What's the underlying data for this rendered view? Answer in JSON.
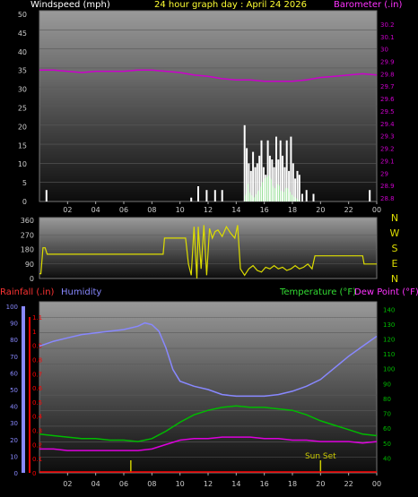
{
  "header": {
    "windspeed_label": "Windspeed (mph)",
    "title": "24 hour graph day : April 24 2026",
    "barometer_label": "Barometer (.in)"
  },
  "footer_labels": {
    "rainfall_label": "Rainfall (.in)",
    "humidity_label": "Humidity",
    "temperature_label": "Temperature (°F)",
    "dewpoint_label": "Dew Point (°F)",
    "sunset_label": "Sun Set"
  },
  "colors": {
    "wind": "#ffffff",
    "gust_fill": "#00cc00",
    "barometer": "#cc00cc",
    "direction": "#dddd00",
    "humidity": "#8888ff",
    "temperature": "#00bb00",
    "dewpoint": "#dd00dd",
    "rain": "#ff0000",
    "markers": "#cccc00",
    "axis_text": "#cccccc"
  },
  "chart_data": [
    {
      "type": "bar",
      "title": "24 hour graph day : April 24 2026",
      "ylabel": "Windspeed (mph)",
      "y2label": "Barometer (.in)",
      "xlim": [
        0,
        24
      ],
      "ylim": [
        0,
        50
      ],
      "y2lim": [
        28.8,
        30.25
      ],
      "x_tick_labels": [
        "02",
        "04",
        "06",
        "08",
        "10",
        "12",
        "14",
        "16",
        "18",
        "20",
        "22",
        "00"
      ],
      "y_tick_labels": [
        "50",
        "45",
        "40",
        "35",
        "30",
        "25",
        "20",
        "15",
        "10",
        "5",
        "0"
      ],
      "y2_tick_labels": [
        "30.2",
        "30.1",
        "30",
        "29.9",
        "29.8",
        "29.7",
        "29.6",
        "29.5",
        "29.4",
        "29.3",
        "29.2",
        "29.1",
        "29",
        "28.9",
        "28.8"
      ],
      "series": [
        {
          "name": "Windspeed (mph)",
          "type": "bar",
          "x": [
            0.5,
            10.8,
            11.3,
            11.9,
            12.5,
            13.0,
            14.6,
            14.75,
            14.9,
            15.05,
            15.2,
            15.35,
            15.5,
            15.65,
            15.8,
            15.95,
            16.1,
            16.25,
            16.4,
            16.55,
            16.7,
            16.85,
            17.0,
            17.15,
            17.3,
            17.45,
            17.6,
            17.75,
            17.9,
            18.05,
            18.2,
            18.35,
            18.5,
            18.7,
            19.0,
            19.5,
            23.5
          ],
          "values": [
            3,
            1,
            4,
            3,
            3,
            3,
            20,
            14,
            10,
            8,
            13,
            9,
            10,
            12,
            16,
            9,
            7,
            16,
            12,
            11,
            9,
            17,
            11,
            16,
            12,
            9,
            16,
            8,
            17,
            10,
            6,
            8,
            7,
            2,
            3,
            2,
            3
          ]
        },
        {
          "name": "Wind Gust",
          "type": "area",
          "x": [
            14.6,
            14.8,
            15.0,
            15.3,
            15.6,
            16.0,
            16.4,
            16.7,
            17.0,
            17.3,
            17.6,
            17.9,
            18.2,
            18.6
          ],
          "values": [
            0,
            5,
            2,
            1,
            3,
            6,
            7,
            3,
            5,
            2,
            4,
            2,
            1,
            0
          ]
        },
        {
          "name": "Barometer (.in)",
          "type": "line",
          "x": [
            0,
            1,
            2,
            3,
            4,
            5,
            6,
            7,
            8,
            9,
            10,
            11,
            12,
            13,
            14,
            15,
            16,
            17,
            18,
            19,
            20,
            21,
            22,
            23,
            24
          ],
          "values": [
            29.83,
            29.83,
            29.82,
            29.81,
            29.82,
            29.82,
            29.82,
            29.83,
            29.83,
            29.82,
            29.81,
            29.79,
            29.78,
            29.76,
            29.75,
            29.75,
            29.74,
            29.74,
            29.74,
            29.75,
            29.77,
            29.78,
            29.79,
            29.8,
            29.79
          ]
        }
      ]
    },
    {
      "type": "line",
      "ylabel_letters": [
        "N",
        "W",
        "S",
        "E",
        "N"
      ],
      "xlim": [
        0,
        24
      ],
      "ylim": [
        0,
        360
      ],
      "y_tick_labels": [
        "360",
        "270",
        "180",
        "90",
        "0"
      ],
      "series": [
        {
          "name": "Wind Direction",
          "x": [
            0,
            0.1,
            0.25,
            0.4,
            0.55,
            0.6,
            8.8,
            8.9,
            9.0,
            10.4,
            10.6,
            10.8,
            11.0,
            11.2,
            11.3,
            11.5,
            11.7,
            11.9,
            12.1,
            12.3,
            12.5,
            12.7,
            13.0,
            13.3,
            13.6,
            13.9,
            14.1,
            14.3,
            14.6,
            14.9,
            15.2,
            15.5,
            15.8,
            16.1,
            16.4,
            16.7,
            17.0,
            17.3,
            17.6,
            17.9,
            18.2,
            18.5,
            18.8,
            19.1,
            19.4,
            19.5,
            19.6,
            20.5,
            23.0,
            23.1,
            23.5,
            24.0
          ],
          "values": [
            30,
            30,
            190,
            190,
            150,
            150,
            150,
            250,
            250,
            250,
            90,
            20,
            320,
            0,
            320,
            60,
            330,
            20,
            310,
            250,
            290,
            300,
            260,
            320,
            280,
            250,
            330,
            60,
            20,
            60,
            80,
            50,
            40,
            70,
            60,
            80,
            60,
            70,
            50,
            60,
            80,
            60,
            70,
            90,
            60,
            100,
            140,
            140,
            140,
            90,
            90,
            90
          ]
        }
      ]
    },
    {
      "type": "line",
      "xlim": [
        0,
        24
      ],
      "ylim": [
        30,
        145
      ],
      "y_tick_labels": [
        "140",
        "130",
        "120",
        "110",
        "100",
        "90",
        "80",
        "70",
        "60",
        "50",
        "40"
      ],
      "y_left_humidity_tick_labels": [
        "100",
        "90",
        "80",
        "70",
        "60",
        "50",
        "40",
        "30",
        "20",
        "10",
        "0"
      ],
      "y_left_rain_tick_labels": [
        "1.1",
        "1",
        "0.9",
        "0.8",
        "0.7",
        "0.6",
        "0.5",
        "0.4",
        "0.3",
        "0.2",
        "0.1",
        "0"
      ],
      "xlabel_markers": [
        {
          "x": 6.5,
          "label": ""
        },
        {
          "x": 20.0,
          "label": "Sun Set"
        }
      ],
      "series": [
        {
          "name": "Humidity",
          "axis": "humidity",
          "x": [
            0,
            1,
            2,
            3,
            4,
            5,
            6,
            7,
            7.5,
            8.0,
            8.5,
            9.0,
            9.5,
            10,
            11,
            12,
            13,
            14,
            15,
            16,
            17,
            18,
            19,
            20,
            21,
            22,
            23,
            24
          ],
          "values": [
            76,
            79,
            81,
            83,
            84,
            85,
            86,
            88,
            90,
            89,
            85,
            75,
            62,
            55,
            52,
            50,
            47,
            46,
            46,
            46,
            47,
            49,
            52,
            56,
            63,
            70,
            76,
            82
          ]
        },
        {
          "name": "Temperature (°F)",
          "x": [
            0,
            1,
            2,
            3,
            4,
            5,
            6,
            7,
            8,
            9,
            10,
            11,
            12,
            13,
            14,
            15,
            16,
            17,
            18,
            19,
            20,
            21,
            22,
            23,
            24
          ],
          "values": [
            56,
            55,
            54,
            53,
            53,
            52,
            52,
            51,
            53,
            58,
            64,
            69,
            72,
            74,
            75,
            74,
            74,
            73,
            72,
            69,
            65,
            62,
            59,
            56,
            55
          ]
        },
        {
          "name": "Dew Point (°F)",
          "x": [
            0,
            1,
            2,
            3,
            4,
            5,
            6,
            7,
            8,
            9,
            10,
            11,
            12,
            13,
            14,
            15,
            16,
            17,
            18,
            19,
            20,
            21,
            22,
            23,
            24
          ],
          "values": [
            46,
            46,
            45,
            45,
            45,
            45,
            45,
            45,
            46,
            49,
            52,
            53,
            53,
            54,
            54,
            54,
            53,
            53,
            52,
            52,
            51,
            51,
            51,
            50,
            51
          ]
        },
        {
          "name": "Rainfall (.in)",
          "axis": "rain",
          "x": [
            0,
            24
          ],
          "values": [
            0,
            0
          ]
        }
      ]
    }
  ]
}
